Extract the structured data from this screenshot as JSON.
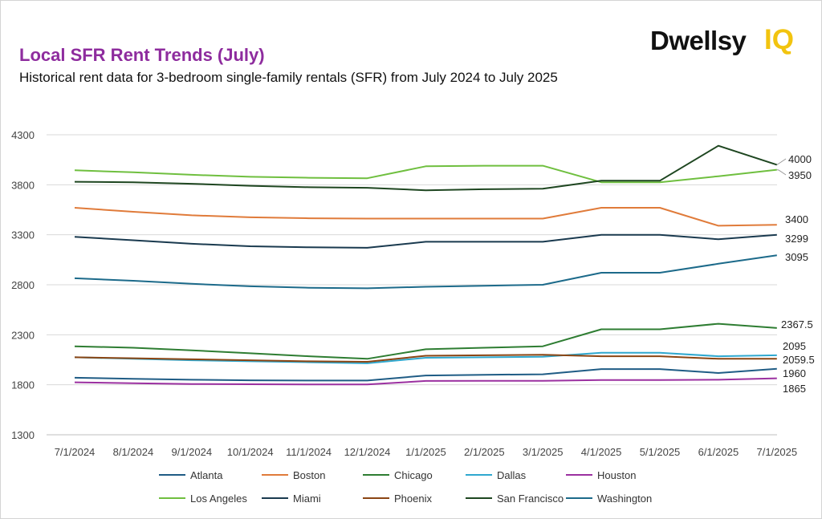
{
  "header": {
    "title": "Local SFR Rent Trends (July)",
    "subtitle": "Historical rent data for 3-bedroom single-family rentals (SFR) from July 2024 to July 2025"
  },
  "logo": {
    "brand": "Dwellsy",
    "suffix": "IQ",
    "brand_color": "#111111",
    "suffix_color": "#f2c40f"
  },
  "chart_data": {
    "type": "line",
    "title": "Local SFR Rent Trends (July)",
    "xlabel": "",
    "ylabel": "",
    "ylim": [
      1300,
      4300
    ],
    "yticks": [
      1300,
      1800,
      2300,
      2800,
      3300,
      3800,
      4300
    ],
    "grid": true,
    "legend_position": "bottom",
    "categories": [
      "7/1/2024",
      "8/1/2024",
      "9/1/2024",
      "10/1/2024",
      "11/1/2024",
      "12/1/2024",
      "1/1/2025",
      "2/1/2025",
      "3/1/2025",
      "4/1/2025",
      "5/1/2025",
      "6/1/2025",
      "7/1/2025"
    ],
    "series": [
      {
        "name": "Atlanta",
        "color": "#1f5c85",
        "values": [
          1870,
          1860,
          1850,
          1845,
          1842,
          1842,
          1893,
          1900,
          1905,
          1957,
          1957,
          1918,
          1960
        ]
      },
      {
        "name": "Boston",
        "color": "#e07b3a",
        "values": [
          3570,
          3530,
          3495,
          3475,
          3465,
          3462,
          3462,
          3462,
          3462,
          3570,
          3570,
          3390,
          3400
        ]
      },
      {
        "name": "Chicago",
        "color": "#2e7d32",
        "values": [
          2185,
          2170,
          2145,
          2115,
          2085,
          2060,
          2155,
          2170,
          2185,
          2355,
          2355,
          2410,
          2367.5
        ]
      },
      {
        "name": "Dallas",
        "color": "#2fa8cf",
        "values": [
          2075,
          2060,
          2045,
          2035,
          2025,
          2015,
          2070,
          2075,
          2080,
          2120,
          2120,
          2085,
          2095
        ]
      },
      {
        "name": "Houston",
        "color": "#9b30a0",
        "values": [
          1825,
          1815,
          1808,
          1805,
          1803,
          1803,
          1838,
          1840,
          1840,
          1848,
          1848,
          1850,
          1865
        ]
      },
      {
        "name": "Los Angeles",
        "color": "#6fbf3f",
        "values": [
          3945,
          3925,
          3900,
          3880,
          3870,
          3865,
          3985,
          3990,
          3990,
          3825,
          3825,
          3885,
          3950
        ]
      },
      {
        "name": "Miami",
        "color": "#1a3a4f",
        "values": [
          3280,
          3245,
          3210,
          3185,
          3175,
          3170,
          3230,
          3230,
          3230,
          3300,
          3300,
          3255,
          3299
        ]
      },
      {
        "name": "Phoenix",
        "color": "#8b4513",
        "values": [
          2075,
          2065,
          2055,
          2045,
          2035,
          2030,
          2090,
          2095,
          2100,
          2085,
          2085,
          2060,
          2059.5
        ]
      },
      {
        "name": "San Francisco",
        "color": "#1e4620",
        "values": [
          3830,
          3825,
          3810,
          3790,
          3775,
          3770,
          3745,
          3755,
          3760,
          3840,
          3840,
          4190,
          4000
        ]
      },
      {
        "name": "Washington",
        "color": "#1c6a8a",
        "values": [
          2865,
          2840,
          2810,
          2785,
          2770,
          2765,
          2780,
          2790,
          2800,
          2920,
          2920,
          3010,
          3095
        ]
      }
    ],
    "end_labels": [
      "4000",
      "3950",
      "3400",
      "3299",
      "3095",
      "2367.5",
      "2095",
      "2059.5",
      "1960",
      "1865"
    ]
  }
}
